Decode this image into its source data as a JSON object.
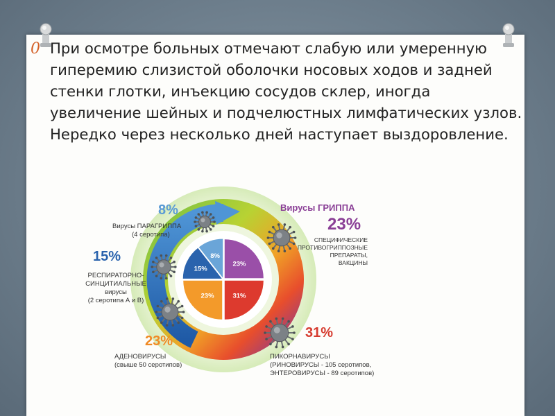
{
  "slide": {
    "bullet_glyph": "0",
    "body_text": "При осмотре больных отмечают слабую или умеренную гиперемию слизистой оболочки носовых ходов и задней стенки глотки, инъекцию сосудов склер, иногда увеличение шейных и подчелюстных лимфатических узлов. Нередко через несколько дней наступает выздоровление."
  },
  "diagram": {
    "colors": {
      "ring_blue": "#2d6fb3",
      "ring_green": "#7cc242",
      "ring_yellow": "#e8c32a",
      "ring_orange": "#f08a24",
      "ring_red": "#e33b2c",
      "ring_purple": "#8c3a8f",
      "halo": "#dfeec6",
      "virus": "#6a6e72"
    },
    "pie": [
      {
        "label": "8%",
        "value": 8,
        "color": "#6aa5d8"
      },
      {
        "label": "23%",
        "value": 23,
        "color": "#9a4fa8"
      },
      {
        "label": "31%",
        "value": 31,
        "color": "#dd3a2e"
      },
      {
        "label": "23%",
        "value": 23,
        "color": "#f39a2a"
      },
      {
        "label": "15%",
        "value": 15,
        "color": "#2a63ad"
      }
    ],
    "groups": {
      "paraflu": {
        "percent": "8%",
        "color": "#5b9bd5",
        "name": "Вирусы ПАРАГРИППА",
        "detail": "(4 серотипа)"
      },
      "flu": {
        "percent": "23%",
        "color": "#8a3f96",
        "name": "Вирусы ГРИППА",
        "detail_1": "СПЕЦИФИЧЕСКИЕ",
        "detail_2": "ПРОТИВОГРИППОЗНЫЕ",
        "detail_3": "ПРЕПАРАТЫ,",
        "detail_4": "ВАКЦИНЫ"
      },
      "rsv": {
        "percent": "15%",
        "color": "#2a63ad",
        "name_1": "РЕСПИРАТОРНО-",
        "name_2": "СИНЦИТИАЛЬНЫЕ",
        "name_3": "вирусы",
        "detail": "(2 серотипа А и В)"
      },
      "adeno": {
        "percent": "23%",
        "color": "#f08a24",
        "name": "АДЕНОВИРУСЫ",
        "detail": "(свыше 50 серотипов)"
      },
      "picorna": {
        "percent": "31%",
        "color": "#d63b2f",
        "name": "ПИКОРНАВИРУСЫ",
        "detail_1": "(РИНОВИРУСЫ - 105 серотипов,",
        "detail_2": "ЭНТЕРОВИРУСЫ - 89 серотипов)"
      }
    }
  }
}
